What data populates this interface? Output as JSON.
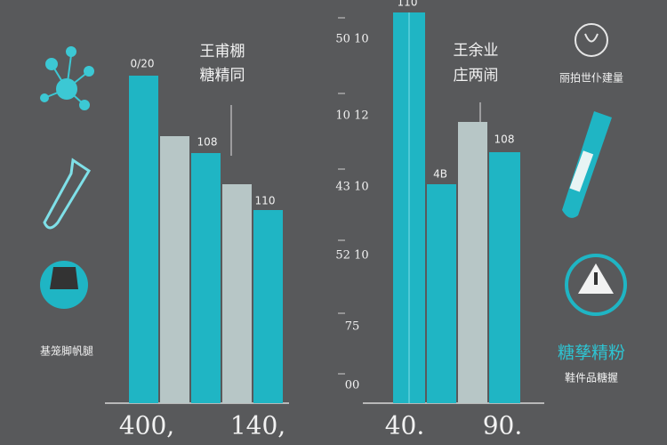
{
  "left_panel": {
    "title_line1": "王甫棚",
    "title_line2": "糖精同",
    "bar_labels": [
      "0/20",
      "108",
      "110"
    ],
    "bottom_labels": [
      "400,",
      "140,"
    ],
    "caption": "基笼脚帆腿"
  },
  "right_panel": {
    "title_line1": "王余业",
    "title_line2": "庄两闹",
    "top_label": "110",
    "axis_labels": [
      "50 10",
      "10 12",
      "43 10",
      "52 10",
      "75",
      "00"
    ],
    "bar_labels": [
      "4B",
      "108"
    ],
    "bottom_labels": [
      "40.",
      "90."
    ]
  },
  "side_right": {
    "caption_top": "丽拍世仆建量",
    "highlight": "糖孳精粉",
    "caption_bottom": "鞋件品糖握"
  }
}
